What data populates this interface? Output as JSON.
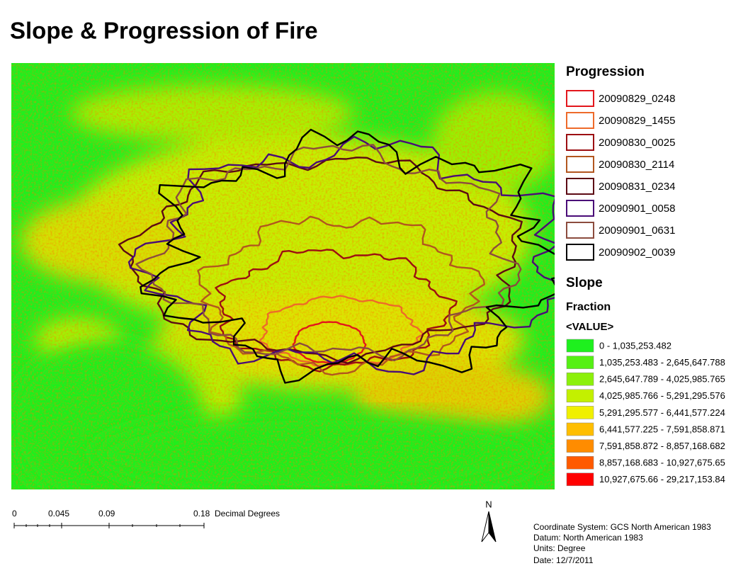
{
  "title": "Slope & Progression of Fire",
  "legend": {
    "progression_title": "Progression",
    "progression": [
      {
        "label": "20090829_0248",
        "color": "#e3161c"
      },
      {
        "label": "20090829_1455",
        "color": "#ee6a2a"
      },
      {
        "label": "20090830_0025",
        "color": "#9c0f12"
      },
      {
        "label": "20090830_2114",
        "color": "#b2561f"
      },
      {
        "label": "20090831_0234",
        "color": "#5c0a14"
      },
      {
        "label": "20090901_0058",
        "color": "#4a0c78"
      },
      {
        "label": "20090901_0631",
        "color": "#8c4c3e"
      },
      {
        "label": "20090902_0039",
        "color": "#000000"
      }
    ],
    "slope_title": "Slope",
    "slope_subtitle": "Fraction",
    "slope_field": "<VALUE>",
    "slope_classes": [
      {
        "label": "0 - 1,035,253.482",
        "color": "#1ef01e"
      },
      {
        "label": "1,035,253.483 - 2,645,647.788",
        "color": "#55f014"
      },
      {
        "label": "2,645,647.789 - 4,025,985.765",
        "color": "#8cf00a"
      },
      {
        "label": "4,025,985.766 - 5,291,295.576",
        "color": "#c3f000"
      },
      {
        "label": "5,291,295.577 - 6,441,577.224",
        "color": "#f0f000"
      },
      {
        "label": "6,441,577.225 - 7,591,858.871",
        "color": "#ffbe00"
      },
      {
        "label": "7,591,858.872 - 8,857,168.682",
        "color": "#ff8c00"
      },
      {
        "label": "8,857,168.683 - 10,927,675.65",
        "color": "#ff5a00"
      },
      {
        "label": "10,927,675.66 - 29,217,153.84",
        "color": "#ff0000"
      }
    ]
  },
  "scale_bar": {
    "ticks": [
      "0",
      "0.045",
      "0.09",
      "0.18"
    ],
    "units": "Decimal Degrees"
  },
  "north_arrow": "N",
  "metadata": [
    "Coordinate System: GCS North American 1983",
    "Datum: North American 1983",
    "Units: Degree",
    "Date: 12/7/2011"
  ]
}
